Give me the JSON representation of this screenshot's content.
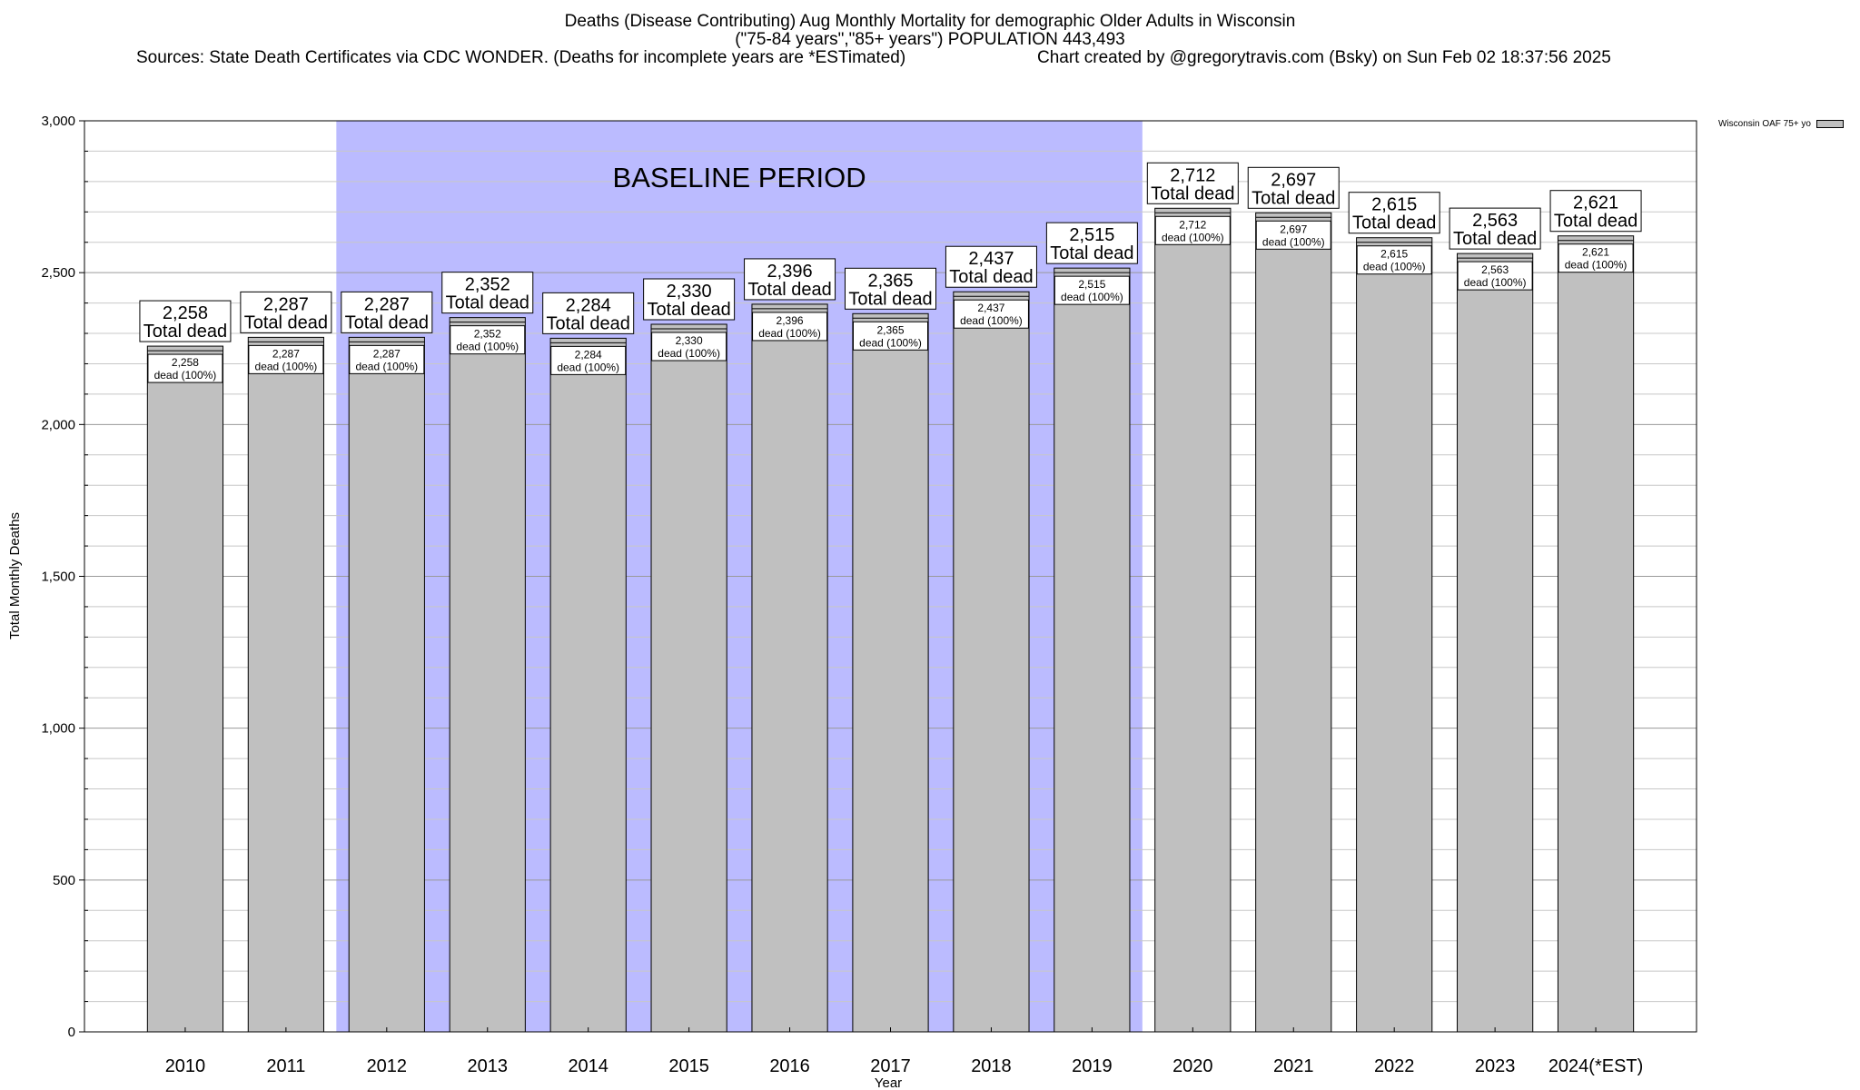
{
  "header": {
    "title_line1": "Deaths (Disease Contributing) Aug Monthly Mortality for demographic Older Adults in Wisconsin",
    "title_line2": "(\"75-84 years\",\"85+ years\") POPULATION 443,493",
    "sources": "Sources: State Death Certificates via CDC WONDER. (Deaths for incomplete years are *ESTimated)",
    "credit": "Chart created by @gregorytravis.com (Bsky) on Sun Feb 02 18:37:56 2025"
  },
  "legend": {
    "label": "Wisconsin OAF 75+ yo"
  },
  "chart_data": {
    "type": "bar",
    "title": "Deaths (Disease Contributing) Aug Monthly Mortality for demographic Older Adults in Wisconsin",
    "xlabel": "Year",
    "ylabel": "Total Monthly Deaths",
    "ylim": [
      0,
      3000
    ],
    "yticks": [
      0,
      500,
      1000,
      1500,
      2000,
      2500,
      3000
    ],
    "ytick_labels": [
      "0",
      "500",
      "1,000",
      "1,500",
      "2,000",
      "2,500",
      "3,000"
    ],
    "grid": true,
    "legend_position": "top-right",
    "categories": [
      "2010",
      "2011",
      "2012",
      "2013",
      "2014",
      "2015",
      "2016",
      "2017",
      "2018",
      "2019",
      "2020",
      "2021",
      "2022",
      "2023",
      "2024(*EST)"
    ],
    "series": [
      {
        "name": "Wisconsin OAF 75+ yo",
        "values": [
          2258,
          2287,
          2287,
          2352,
          2284,
          2330,
          2396,
          2365,
          2437,
          2515,
          2712,
          2697,
          2615,
          2563,
          2621
        ]
      }
    ],
    "top_labels": [
      "2,258",
      "2,287",
      "2,287",
      "2,352",
      "2,284",
      "2,330",
      "2,396",
      "2,365",
      "2,437",
      "2,515",
      "2,712",
      "2,697",
      "2,615",
      "2,563",
      "2,621"
    ],
    "top_label_suffix": "Total dead",
    "inner_labels": [
      "2,258",
      "2,287",
      "2,287",
      "2,352",
      "2,284",
      "2,330",
      "2,396",
      "2,365",
      "2,437",
      "2,515",
      "2,712",
      "2,697",
      "2,615",
      "2,563",
      "2,621"
    ],
    "inner_label_suffix": "dead (100%)",
    "baseline": {
      "label": "BASELINE PERIOD",
      "start": "2012",
      "end": "2019",
      "color": "#bbbbff"
    },
    "bar_color": "#c0c0c0"
  }
}
